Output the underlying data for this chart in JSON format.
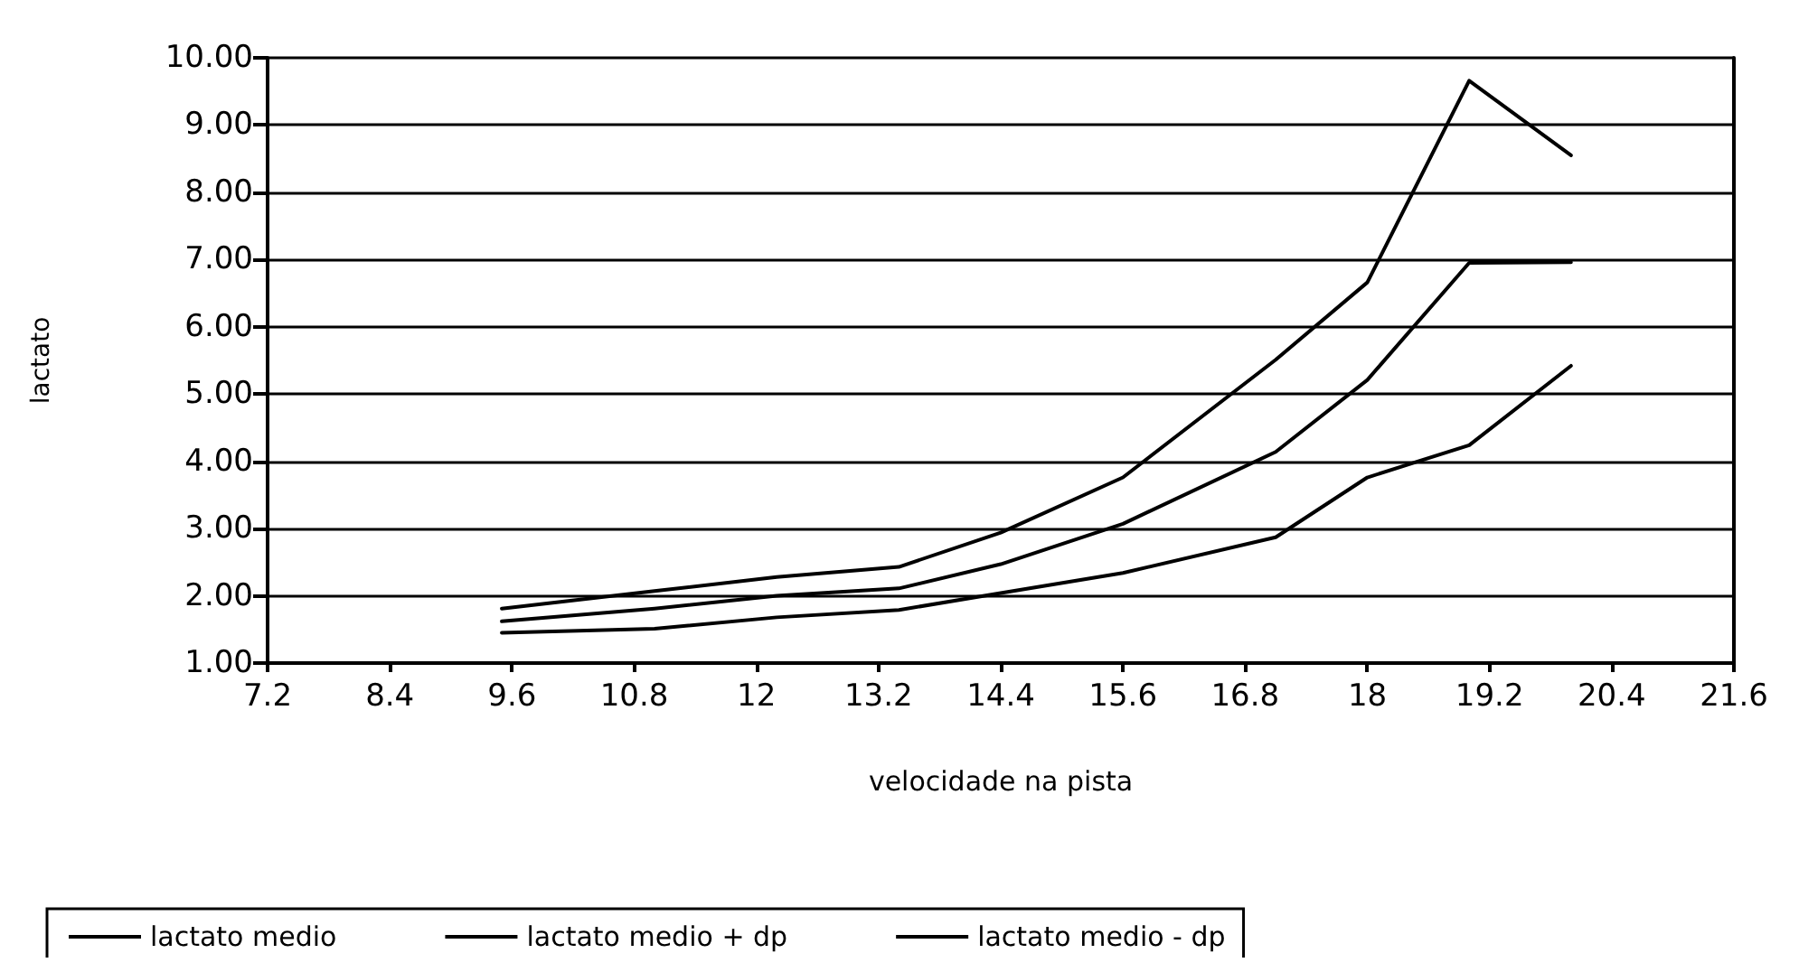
{
  "chart_data": {
    "type": "line",
    "xlabel": "velocidade na pista",
    "ylabel": "lactato",
    "x": [
      9.5,
      11.0,
      12.2,
      13.4,
      14.4,
      15.6,
      17.1,
      18.0,
      19.0,
      20.0
    ],
    "series": [
      {
        "name": "lactato medio",
        "color": "#000000",
        "values": [
          1.62,
          1.81,
          2.0,
          2.11,
          2.47,
          3.07,
          4.14,
          5.21,
          6.95,
          6.96
        ]
      },
      {
        "name": "lactato medio + dp",
        "color": "#000000",
        "values": [
          1.81,
          2.07,
          2.28,
          2.43,
          2.94,
          3.76,
          5.51,
          6.66,
          9.66,
          8.55
        ]
      },
      {
        "name": "lactato medio - dp",
        "color": "#000000",
        "values": [
          1.45,
          1.51,
          1.68,
          1.79,
          2.04,
          2.34,
          2.87,
          3.76,
          4.24,
          5.42
        ]
      }
    ],
    "xlim": [
      7.2,
      21.6
    ],
    "xticks": [
      7.2,
      8.4,
      9.6,
      10.8,
      12,
      13.2,
      14.4,
      15.6,
      16.8,
      18,
      19.2,
      20.4,
      21.6
    ],
    "ylim": [
      1,
      10
    ],
    "yticks": [
      {
        "value": 1,
        "label": "1.00"
      },
      {
        "value": 2,
        "label": "2.00"
      },
      {
        "value": 3,
        "label": "3.00"
      },
      {
        "value": 4,
        "label": "4.00"
      },
      {
        "value": 5,
        "label": "5.00"
      },
      {
        "value": 6,
        "label": "6.00"
      },
      {
        "value": 7,
        "label": "7.00"
      },
      {
        "value": 8,
        "label": "8.00"
      },
      {
        "value": 9,
        "label": "9.00"
      },
      {
        "value": 10,
        "label": "10.00"
      }
    ],
    "grid": "y",
    "legend": "bottom",
    "marker": "none",
    "line_style": "solid"
  }
}
